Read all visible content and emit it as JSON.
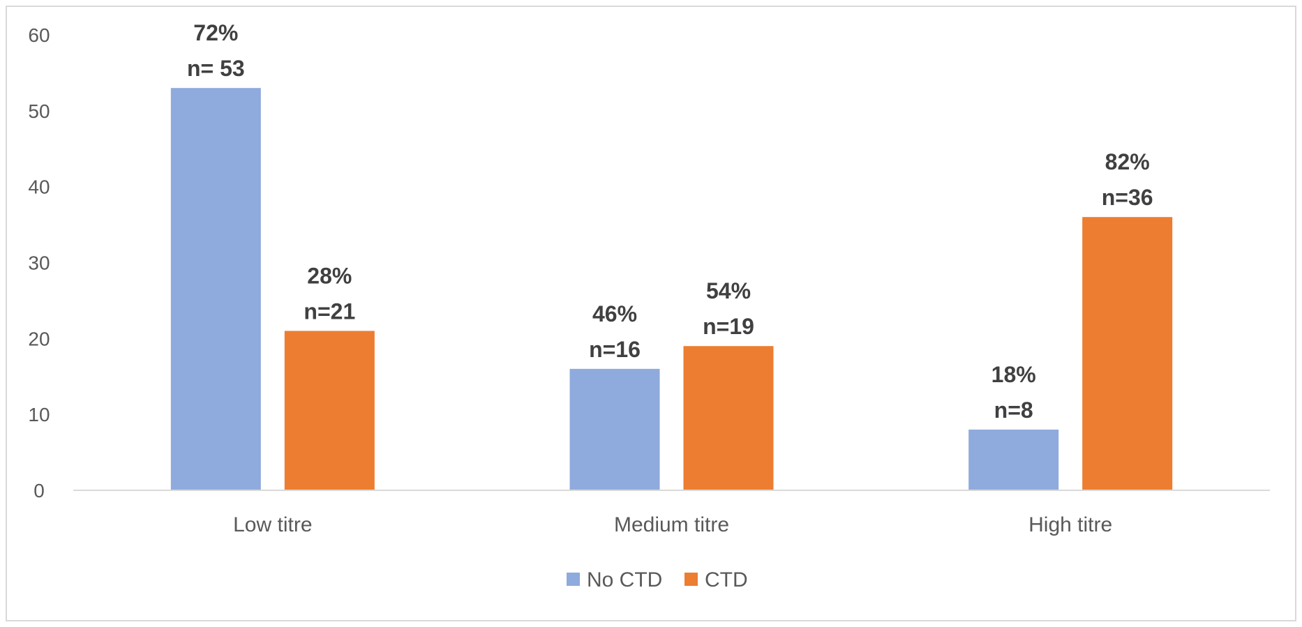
{
  "chart_data": {
    "type": "bar",
    "title": "",
    "xlabel": "",
    "ylabel": "",
    "categories": [
      "Low titre",
      "Medium titre",
      "High titre"
    ],
    "ylim": [
      0,
      60
    ],
    "yticks": [
      0,
      10,
      20,
      30,
      40,
      50,
      60
    ],
    "grid": false,
    "legend_position": "bottom",
    "series": [
      {
        "name": "No CTD",
        "color": "#8faadc",
        "values": [
          53,
          16,
          8
        ],
        "labels": [
          [
            "72%",
            "n= 53"
          ],
          [
            "46%",
            "n=16"
          ],
          [
            "18%",
            "n=8"
          ]
        ]
      },
      {
        "name": "CTD",
        "color": "#ed7d31",
        "values": [
          21,
          19,
          36
        ],
        "labels": [
          [
            "28%",
            "n=21"
          ],
          [
            "54%",
            "n=19"
          ],
          [
            "82%",
            "n=36"
          ]
        ]
      }
    ]
  }
}
